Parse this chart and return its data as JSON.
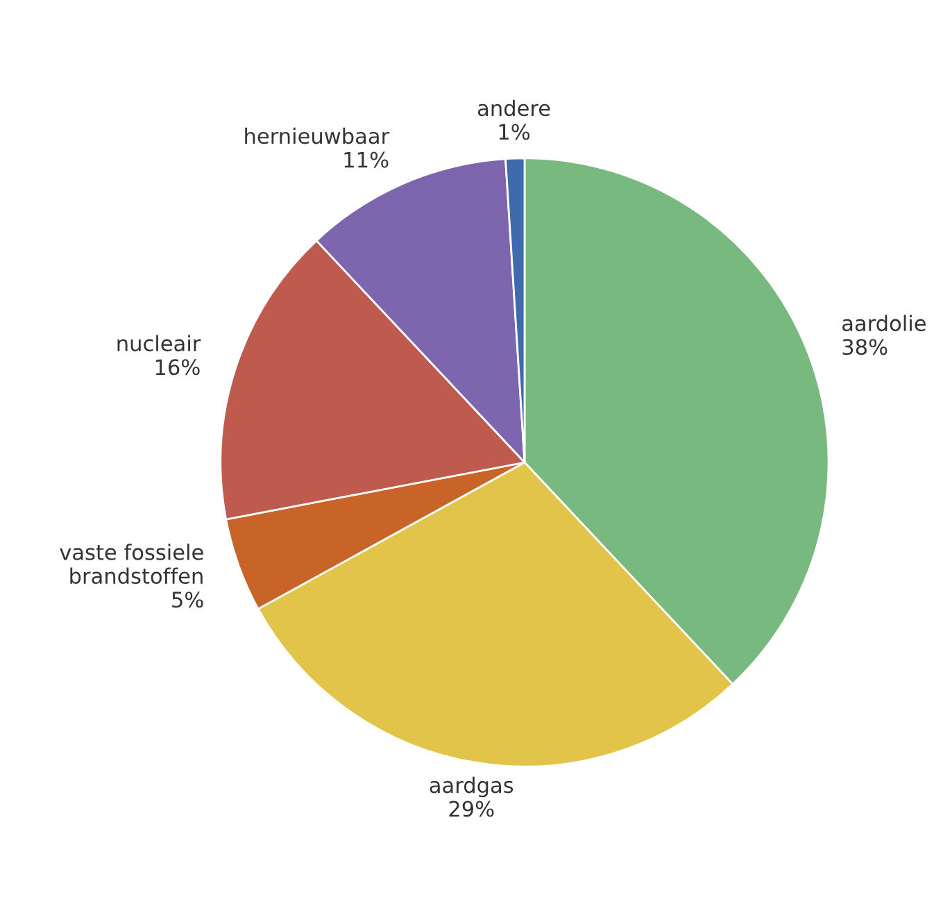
{
  "chart_data": {
    "type": "pie",
    "categories": [
      "aardolie",
      "aardgas",
      "vaste fossiele\nbrandstoffen",
      "nucleair",
      "hernieuwbaar",
      "andere"
    ],
    "values": [
      38,
      29,
      5,
      16,
      11,
      1
    ],
    "value_labels": [
      "38%",
      "29%",
      "5%",
      "16%",
      "11%",
      "1%"
    ],
    "colors": [
      "#77b97f",
      "#e3c44a",
      "#c96428",
      "#bf5a4f",
      "#7e66ae",
      "#3f6aad"
    ]
  }
}
